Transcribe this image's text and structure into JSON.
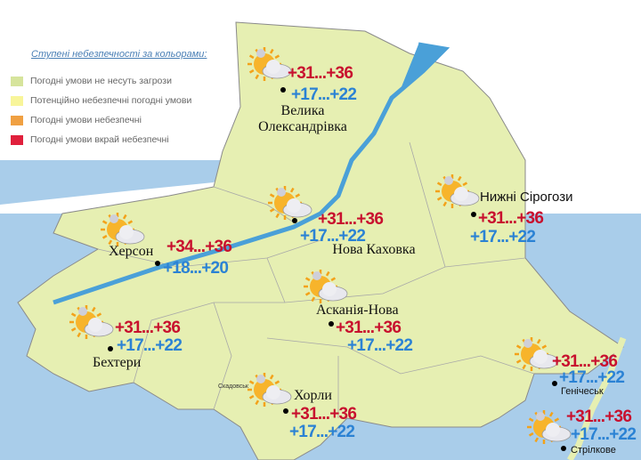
{
  "legend": {
    "title": "Ступені небезпечності за кольорами:",
    "items": [
      {
        "label": "Погодні умови не несуть загрози",
        "color": "#d6e49c"
      },
      {
        "label": "Потенційно небезпечні погодні умови",
        "color": "#f8f59a"
      },
      {
        "label": "Погодні умови небезпечні",
        "color": "#f0a042"
      },
      {
        "label": "Погодні умови вкрай небезпечні",
        "color": "#e0203c"
      }
    ]
  },
  "map_labels": [
    "Скадовськ"
  ],
  "cities": [
    {
      "name": "Велика Олександрівка",
      "day": "+31...+36",
      "night": "+17...+22"
    },
    {
      "name": "Нова Каховка",
      "day": "+31...+36",
      "night": "+17...+22"
    },
    {
      "name": "Нижні Сірогози",
      "day": "+31...+36",
      "night": "+17...+22"
    },
    {
      "name": "Херсон",
      "day": "+34...+36",
      "night": "+18...+20"
    },
    {
      "name": "Асканія-Нова",
      "day": "+31...+36",
      "night": "+17...+22"
    },
    {
      "name": "Бехтери",
      "day": "+31...+36",
      "night": "+17...+22"
    },
    {
      "name": "Хорли",
      "day": "+31...+36",
      "night": "+17...+22"
    },
    {
      "name": "Генічеськ",
      "day": "+31...+36",
      "night": "+17...+22"
    },
    {
      "name": "Стрілкове",
      "day": "+31...+36",
      "night": "+17...+22"
    }
  ]
}
